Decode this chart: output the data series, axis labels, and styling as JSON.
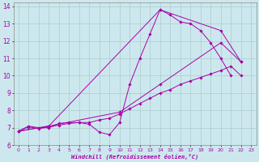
{
  "xlabel": "Windchill (Refroidissement éolien,°C)",
  "background_color": "#cce8ee",
  "grid_color": "#aacccc",
  "line_color": "#aa00aa",
  "xlim": [
    -0.5,
    23.5
  ],
  "ylim": [
    6,
    14.2
  ],
  "xticks": [
    0,
    1,
    2,
    3,
    4,
    5,
    6,
    7,
    8,
    9,
    10,
    11,
    12,
    13,
    14,
    15,
    16,
    17,
    18,
    19,
    20,
    21,
    22,
    23
  ],
  "yticks": [
    6,
    7,
    8,
    9,
    10,
    11,
    12,
    13,
    14
  ],
  "series": [
    {
      "x": [
        0,
        1,
        2,
        3,
        4,
        5,
        6,
        7,
        8,
        9,
        10,
        11,
        12,
        13,
        14,
        15,
        16,
        17,
        18,
        19,
        20,
        21
      ],
      "y": [
        6.8,
        7.1,
        7.0,
        7.0,
        7.25,
        7.3,
        7.3,
        7.2,
        6.75,
        6.6,
        7.3,
        9.5,
        11.0,
        12.4,
        13.8,
        13.5,
        13.1,
        13.0,
        12.6,
        11.9,
        11.0,
        10.0
      ]
    },
    {
      "x": [
        0,
        1,
        2,
        3,
        4,
        5,
        6,
        7,
        8,
        9,
        10,
        11,
        12,
        13,
        14,
        15,
        16,
        17,
        18,
        19,
        20,
        21,
        22
      ],
      "y": [
        6.8,
        7.05,
        6.95,
        7.05,
        7.15,
        7.25,
        7.3,
        7.3,
        7.45,
        7.55,
        7.8,
        8.1,
        8.4,
        8.7,
        9.0,
        9.2,
        9.5,
        9.7,
        9.9,
        10.1,
        10.3,
        10.55,
        10.0
      ]
    },
    {
      "x": [
        0,
        3,
        10,
        14,
        20,
        22
      ],
      "y": [
        6.8,
        7.1,
        7.9,
        9.5,
        11.9,
        10.8
      ]
    },
    {
      "x": [
        0,
        3,
        14,
        20,
        22
      ],
      "y": [
        6.8,
        7.1,
        13.8,
        12.6,
        10.8
      ]
    }
  ]
}
